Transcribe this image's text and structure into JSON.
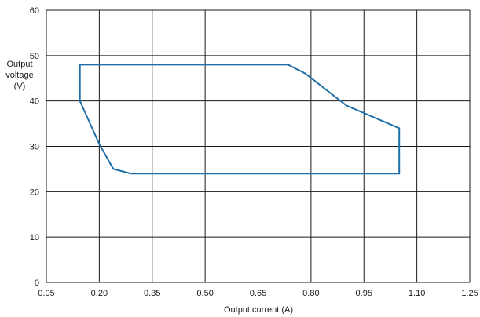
{
  "chart_data": {
    "type": "line",
    "title": "",
    "xlabel": "Output current (A)",
    "ylabel_lines": [
      "Output",
      "voltage",
      "(V)"
    ],
    "xlim": [
      0.05,
      1.25
    ],
    "ylim": [
      0,
      60
    ],
    "x_ticks": [
      0.05,
      0.2,
      0.35,
      0.5,
      0.65,
      0.8,
      0.95,
      1.1,
      1.25
    ],
    "x_tick_labels": [
      "0.05",
      "0.20",
      "0.35",
      "0.50",
      "0.65",
      "0.80",
      "0.95",
      "1.10",
      "1.25"
    ],
    "y_ticks": [
      0,
      10,
      20,
      30,
      40,
      50,
      60
    ],
    "y_tick_labels": [
      "0",
      "10",
      "20",
      "30",
      "40",
      "50",
      "60"
    ],
    "grid": true,
    "series": [
      {
        "color": "#1f6fa8",
        "closed": true,
        "points": [
          [
            0.145,
            48
          ],
          [
            0.735,
            48
          ],
          [
            0.785,
            46
          ],
          [
            0.9,
            39
          ],
          [
            1.05,
            34
          ],
          [
            1.05,
            24
          ],
          [
            0.29,
            24
          ],
          [
            0.24,
            25
          ],
          [
            0.2,
            30.5
          ],
          [
            0.145,
            40
          ]
        ]
      }
    ]
  }
}
